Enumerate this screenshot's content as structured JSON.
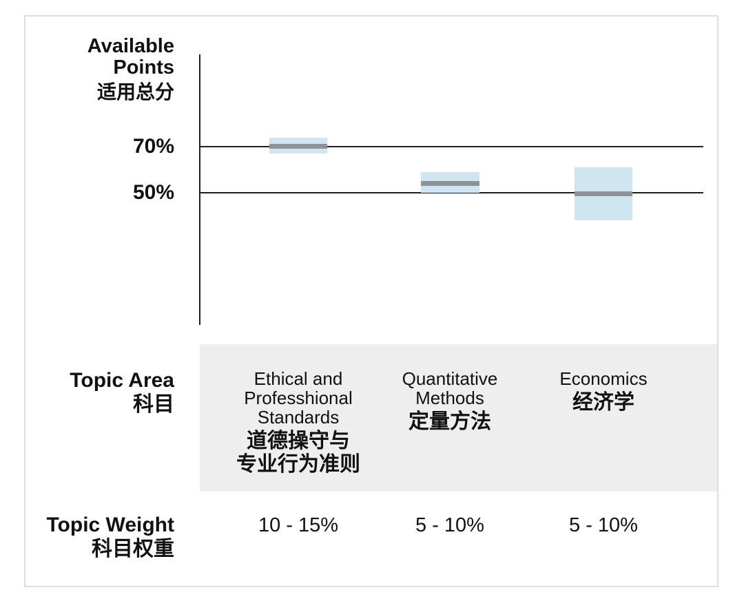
{
  "y_axis": {
    "title_en": "Available Points",
    "title_zh": "适用总分",
    "tick_labels": [
      "70%",
      "50%"
    ]
  },
  "row_labels": {
    "topic_area_en": "Topic Area",
    "topic_area_zh": "科目",
    "topic_weight_en": "Topic Weight",
    "topic_weight_zh": "科目权重"
  },
  "topics": [
    {
      "en_lines": [
        "Ethical and",
        "Professhional",
        "Standards"
      ],
      "zh_lines": [
        "道德操守与",
        "专业行为准则"
      ],
      "weight": "10 - 15%"
    },
    {
      "en_lines": [
        "Quantitative",
        "Methods"
      ],
      "zh_lines": [
        "定量方法"
      ],
      "weight": "5 - 10%"
    },
    {
      "en_lines": [
        "Economics"
      ],
      "zh_lines": [
        "经济学"
      ],
      "weight": "5 - 10%"
    }
  ],
  "colors": {
    "box_fill": "#CFE6F1",
    "median_line": "#8C9296",
    "panel_background": "#EEEEEE",
    "axis_line": "#1F1F1F",
    "frame_border": "#DEDEDE",
    "text": "#111111"
  },
  "chart_data": {
    "type": "box-range",
    "title": "Available Points 适用总分",
    "categories": [
      "Ethical and Professhional Standards 道德操守与专业行为准则",
      "Quantitative Methods 定量方法",
      "Economics 经济学"
    ],
    "ylabel": "Available Points (%)",
    "y_gridlines_pct": [
      70,
      50
    ],
    "ranges_pct": [
      [
        67,
        74
      ],
      [
        50,
        59
      ],
      [
        38,
        61
      ]
    ],
    "medians_pct": [
      70,
      54,
      49.5
    ],
    "topic_weights": [
      "10 - 15%",
      "5 - 10%",
      "5 - 10%"
    ],
    "legend": "none",
    "grid": "horizontal lines at labeled ticks only"
  }
}
